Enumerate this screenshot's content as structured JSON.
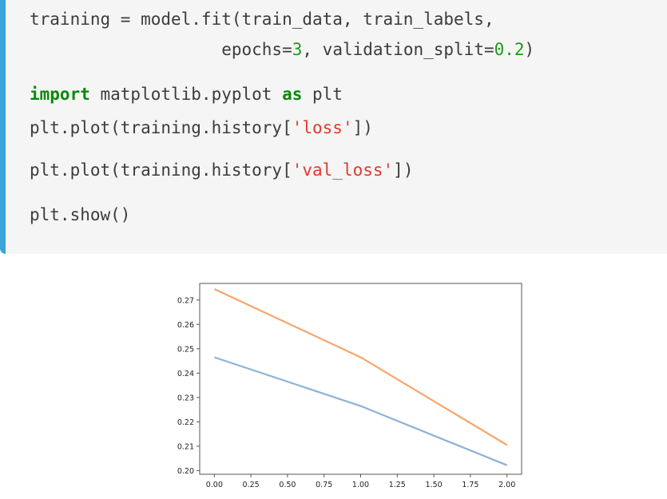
{
  "code": {
    "line1": {
      "a": "training = model.fit(train_data, train_labels,"
    },
    "line2": {
      "a": "                   epochs=",
      "b": "3",
      "c": ", validation_split=",
      "d": "0.2",
      "e": ")"
    },
    "line3": {
      "kw1": "import",
      "a": " matplotlib.pyplot ",
      "kw2": "as",
      "b": " plt"
    },
    "line4": {
      "a": "plt.plot(training.history[",
      "s": "'loss'",
      "b": "])"
    },
    "line5": {
      "a": "plt.plot(training.history[",
      "s": "'val_loss'",
      "b": "])"
    },
    "line6": {
      "a": "plt.show()"
    }
  },
  "colors": {
    "accent_bar": "#3aa6d8",
    "keyword": "#0a8a0a",
    "string": "#e03a2e",
    "number": "#1d9a1d",
    "series_loss": "#8fb1d6",
    "series_val_loss": "#f5a66d"
  },
  "chart_data": {
    "type": "line",
    "x": [
      0,
      1,
      2
    ],
    "series": [
      {
        "values": [
          0.2465,
          0.2265,
          0.2022
        ]
      },
      {
        "values": [
          0.2745,
          0.2465,
          0.2105
        ]
      }
    ],
    "xlim": [
      -0.1,
      2.1
    ],
    "ylim": [
      0.1985,
      0.2768
    ],
    "xticks": [
      "0.00",
      "0.25",
      "0.50",
      "0.75",
      "1.00",
      "1.25",
      "1.50",
      "1.75",
      "2.00"
    ],
    "yticks": [
      "0.20",
      "0.21",
      "0.22",
      "0.23",
      "0.24",
      "0.25",
      "0.26",
      "0.27"
    ],
    "grid": false
  }
}
